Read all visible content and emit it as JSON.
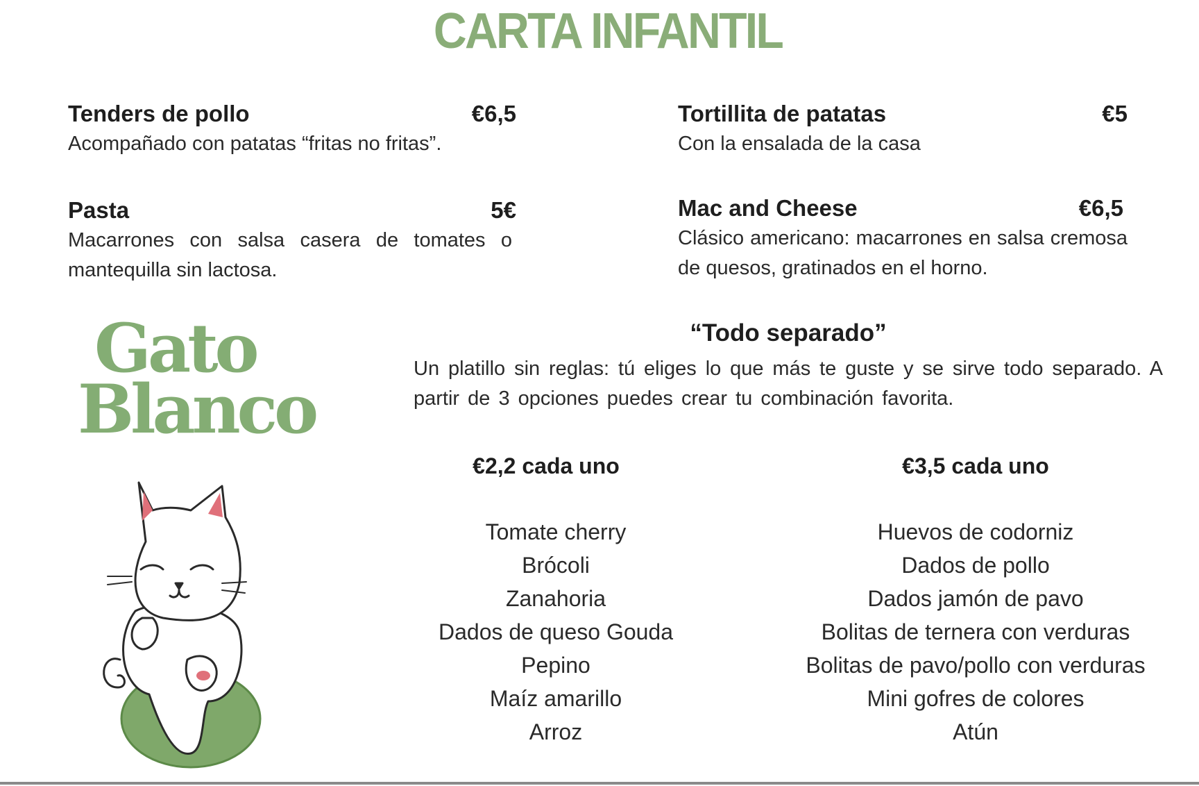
{
  "title": "CARTA INFANTIL",
  "accent_color": "#8aad78",
  "items": [
    {
      "name": "Tenders de pollo",
      "price": "€6,5",
      "description": "Acompañado con patatas “fritas no fritas”."
    },
    {
      "name": "Tortillita de patatas",
      "price": "€5",
      "description": "Con la ensalada de la casa"
    },
    {
      "name": "Pasta",
      "price": "5€",
      "description": "Macarrones con salsa casera de tomates o mantequilla sin lactosa."
    },
    {
      "name": "Mac and Cheese",
      "price": "€6,5",
      "description": "Clásico americano: macarrones en salsa cremosa de quesos, gratinados en el horno."
    }
  ],
  "logo": {
    "line1": "Gato",
    "line2": "Blanco",
    "illustration": "white-cat-on-green-cushion"
  },
  "todo_separado": {
    "title": "“Todo separado”",
    "description": "Un platillo sin reglas: tú eliges lo que más te guste y se sirve todo separado. A partir de 3 opciones puedes crear tu combinación favorita."
  },
  "options": [
    {
      "price_label": "€2,2 cada uno",
      "items": [
        "Tomate cherry",
        "Brócoli",
        "Zanahoria",
        "Dados de queso Gouda",
        "Pepino",
        "Maíz amarillo",
        "Arroz"
      ]
    },
    {
      "price_label": "€3,5 cada uno",
      "items": [
        "Huevos de codorniz",
        "Dados de pollo",
        "Dados jamón de pavo",
        "Bolitas de ternera con verduras",
        "Bolitas de pavo/pollo con verduras",
        "Mini gofres de colores",
        "Atún"
      ]
    }
  ]
}
